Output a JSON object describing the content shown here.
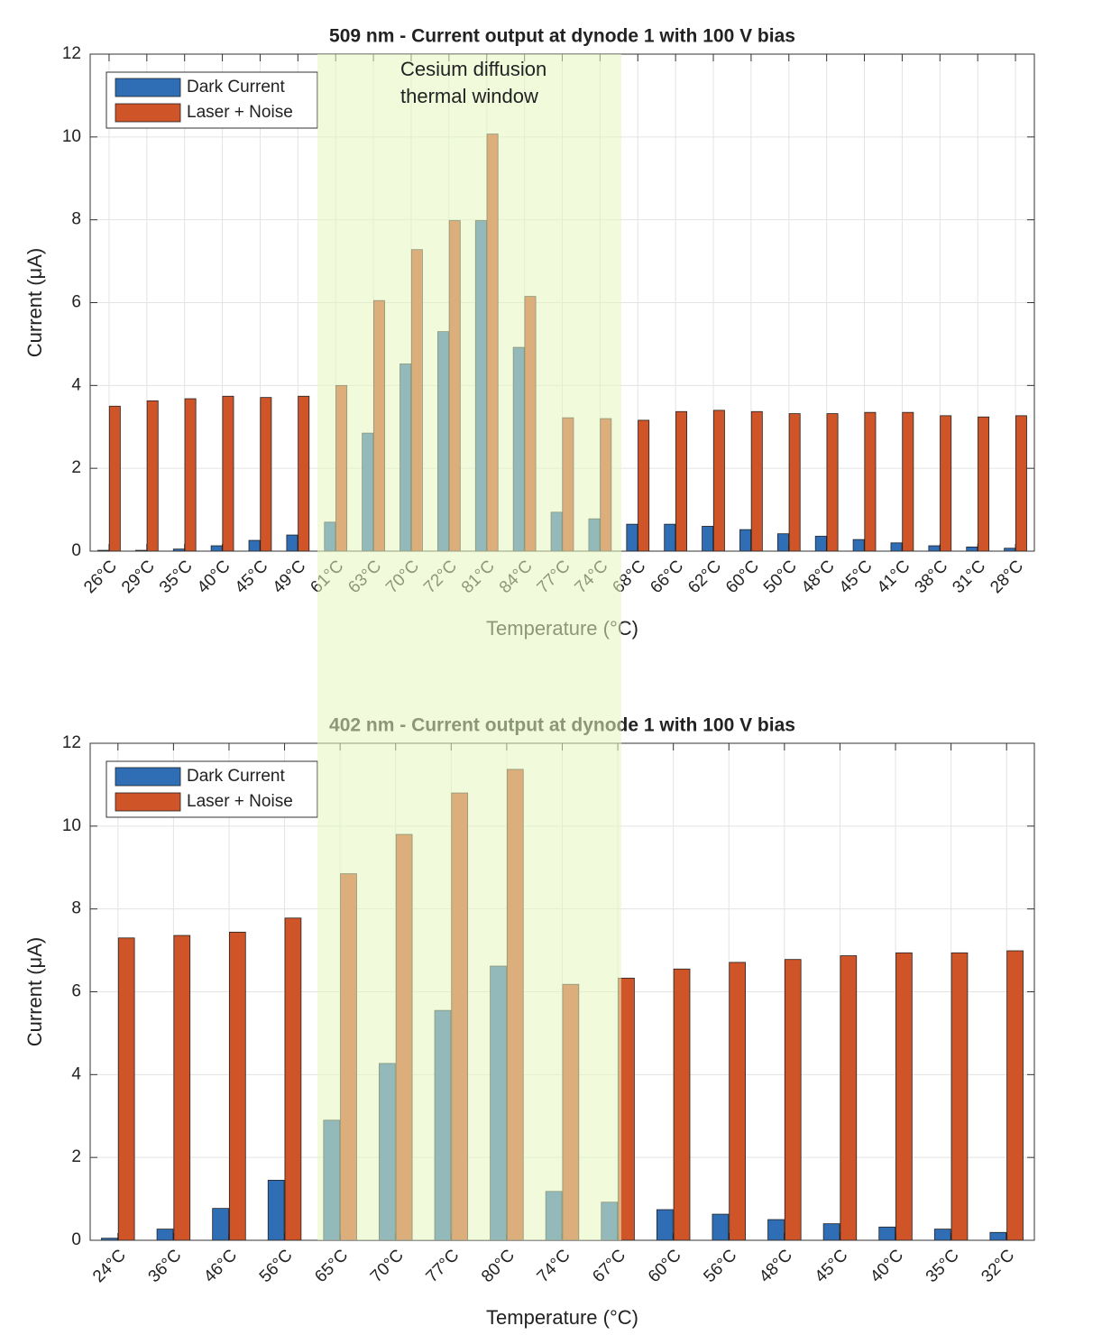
{
  "chart_data": [
    {
      "type": "bar",
      "title": "509 nm - Current output at dynode 1 with 100 V bias",
      "xlabel": "Temperature (°C)",
      "ylabel": "Current (μA)",
      "annotation": [
        "Cesium diffusion",
        "thermal window"
      ],
      "categories": [
        "26°C",
        "29°C",
        "35°C",
        "40°C",
        "45°C",
        "49°C",
        "61°C",
        "63°C",
        "70°C",
        "72°C",
        "81°C",
        "84°C",
        "77°C",
        "74°C",
        "68°C",
        "66°C",
        "62°C",
        "60°C",
        "50°C",
        "48°C",
        "45°C",
        "41°C",
        "38°C",
        "31°C",
        "28°C"
      ],
      "series": [
        {
          "name": "Dark Current",
          "color": "#2f6db5",
          "values": [
            0.02,
            0.02,
            0.05,
            0.13,
            0.26,
            0.39,
            0.7,
            2.85,
            4.52,
            5.3,
            7.98,
            4.92,
            0.94,
            0.78,
            0.65,
            0.65,
            0.6,
            0.52,
            0.42,
            0.36,
            0.28,
            0.2,
            0.13,
            0.1,
            0.07
          ]
        },
        {
          "name": "Laser + Noise",
          "color": "#cf5428",
          "values": [
            3.5,
            3.63,
            3.68,
            3.74,
            3.71,
            3.74,
            4.0,
            6.05,
            7.28,
            7.98,
            10.07,
            6.15,
            3.22,
            3.2,
            3.16,
            3.37,
            3.4,
            3.37,
            3.32,
            3.32,
            3.35,
            3.35,
            3.27,
            3.24,
            3.27
          ]
        }
      ],
      "ylim": [
        0,
        12
      ],
      "yticks": [
        0,
        2,
        4,
        6,
        8,
        10,
        12
      ],
      "grid": true,
      "legend": "upper left"
    },
    {
      "type": "bar",
      "title": "402 nm - Current output at dynode 1 with 100 V bias",
      "xlabel": "Temperature (°C)",
      "ylabel": "Current (μA)",
      "categories": [
        "24°C",
        "36°C",
        "46°C",
        "56°C",
        "65°C",
        "70°C",
        "77°C",
        "80°C",
        "74°C",
        "67°C",
        "60°C",
        "56°C",
        "48°C",
        "45°C",
        "40°C",
        "35°C",
        "32°C"
      ],
      "series": [
        {
          "name": "Dark Current",
          "color": "#2f6db5",
          "values": [
            0.05,
            0.27,
            0.77,
            1.45,
            2.9,
            4.27,
            5.55,
            6.62,
            1.18,
            0.92,
            0.74,
            0.63,
            0.5,
            0.4,
            0.32,
            0.27,
            0.19
          ]
        },
        {
          "name": "Laser + Noise",
          "color": "#cf5428",
          "values": [
            7.3,
            7.36,
            7.44,
            7.78,
            8.85,
            9.8,
            10.8,
            11.37,
            6.18,
            6.33,
            6.55,
            6.71,
            6.78,
            6.87,
            6.94,
            6.94,
            6.99
          ]
        }
      ],
      "ylim": [
        0,
        12
      ],
      "yticks": [
        0,
        2,
        4,
        6,
        8,
        10,
        12
      ],
      "grid": true,
      "legend": "upper left"
    }
  ]
}
